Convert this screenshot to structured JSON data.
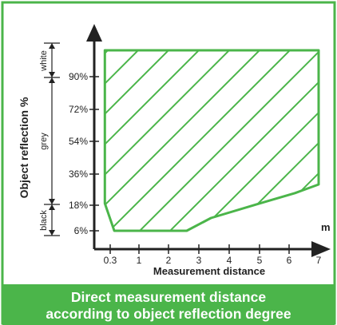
{
  "chart_data": {
    "type": "area",
    "ylabel": "Object reflection %",
    "xlabel": "Measurement distance",
    "x_unit": "m",
    "x_ticks": [
      "0.3",
      "1",
      "2",
      "3",
      "4",
      "5",
      "6",
      "7"
    ],
    "y_ticks": [
      "6%",
      "18%",
      "36%",
      "54%",
      "72%",
      "90%"
    ],
    "reflection_bands": [
      "white",
      "grey",
      "black"
    ],
    "region_boundary": [
      {
        "x": 0.2,
        "y": 108
      },
      {
        "x": 7.0,
        "y": 108
      },
      {
        "x": 7.0,
        "y": 30
      },
      {
        "x": 6.2,
        "y": 25
      },
      {
        "x": 5.0,
        "y": 19
      },
      {
        "x": 3.4,
        "y": 12
      },
      {
        "x": 2.6,
        "y": 6
      },
      {
        "x": 0.4,
        "y": 6
      },
      {
        "x": 0.2,
        "y": 19
      }
    ],
    "xlim": [
      0,
      7.4
    ],
    "ylim": [
      0,
      120
    ]
  },
  "caption": {
    "line1": "Direct measurement distance",
    "line2": "according to object reflection degree"
  },
  "colors": {
    "frame": "#4bb54a",
    "region": "#4bb54a",
    "axis": "#222222",
    "caption_bg": "#4bb54a",
    "caption_text": "#ffffff"
  }
}
